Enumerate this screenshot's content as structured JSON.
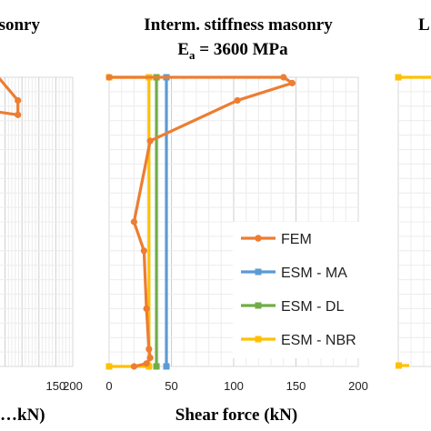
{
  "chart_data": [
    {
      "type": "line",
      "title": "…sonry",
      "xlabel": "…kN)",
      "xticks": [
        "150",
        "200"
      ],
      "xlim": [
        -15,
        200
      ],
      "series": [
        {
          "name": "FEM",
          "color": "#ED7D31",
          "points": [
            [
              -20,
              88
            ],
            [
              38,
              87
            ],
            [
              38,
              92
            ],
            [
              -20,
              100
            ]
          ]
        }
      ]
    },
    {
      "type": "line",
      "title": "Interm. stiffness masonry",
      "subtitle_main": "E",
      "subtitle_sub": "a",
      "subtitle_rest": " = 3600 MPa",
      "xlabel": "Shear force (kN)",
      "xticks": [
        "0",
        "50",
        "100",
        "150",
        "200"
      ],
      "xlim": [
        0,
        200
      ],
      "ylim": [
        0,
        100
      ],
      "grid": true,
      "legend_position": "right",
      "series": [
        {
          "name": "FEM",
          "color": "#ED7D31",
          "marker": "circle",
          "points": [
            [
              20,
              0
            ],
            [
              30,
              1
            ],
            [
              33,
              3
            ],
            [
              32,
              6
            ],
            [
              30,
              20
            ],
            [
              28,
              40
            ],
            [
              20,
              50
            ],
            [
              33,
              78
            ],
            [
              103,
              92
            ],
            [
              147,
              98
            ],
            [
              140,
              100
            ],
            [
              0,
              100
            ]
          ]
        },
        {
          "name": "ESM - MA",
          "color": "#5B9BD5",
          "marker": "square",
          "points": [
            [
              46,
              0
            ],
            [
              46,
              100
            ]
          ]
        },
        {
          "name": "ESM - DL",
          "color": "#70AD47",
          "marker": "square",
          "points": [
            [
              38,
              0
            ],
            [
              38,
              100
            ]
          ]
        },
        {
          "name": "ESM - NBR",
          "color": "#FFC000",
          "marker": "square",
          "points": [
            [
              0,
              0
            ],
            [
              32,
              0
            ],
            [
              32,
              100
            ],
            [
              0,
              100
            ]
          ]
        }
      ]
    },
    {
      "type": "line",
      "title": "L…",
      "series": [
        {
          "name": "ESM - NBR",
          "color": "#FFC000",
          "points": [
            [
              0,
              100
            ],
            [
              40,
              100
            ]
          ]
        }
      ]
    }
  ]
}
